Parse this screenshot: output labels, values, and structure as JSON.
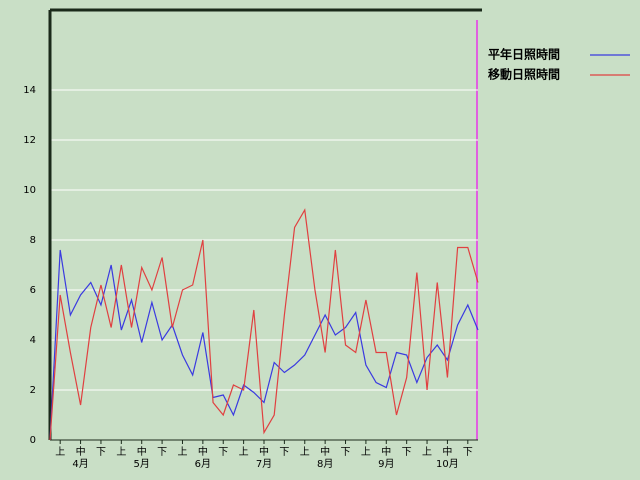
{
  "chart_data": {
    "type": "line",
    "series": [
      {
        "name": "平年日照時間",
        "color": "#3a3ae0",
        "values": [
          0,
          7.6,
          5.0,
          5.8,
          6.3,
          5.4,
          7.0,
          4.4,
          5.6,
          3.9,
          5.5,
          4.0,
          4.6,
          3.4,
          2.6,
          4.3,
          1.7,
          1.8,
          1.0,
          2.2,
          1.9,
          1.5,
          3.1,
          2.7,
          3.0,
          3.4,
          4.2,
          5.0,
          4.2,
          4.5,
          5.1,
          3.0,
          2.3,
          2.1,
          3.5,
          3.4,
          2.3,
          3.3,
          3.8,
          3.2,
          4.6,
          5.4,
          4.4
        ]
      },
      {
        "name": "移動日照時間",
        "color": "#e04040",
        "values": [
          0,
          5.8,
          3.5,
          1.4,
          4.5,
          6.2,
          4.5,
          7.0,
          4.5,
          6.9,
          6.0,
          7.3,
          4.5,
          6.0,
          6.2,
          8.0,
          1.5,
          1.0,
          2.2,
          2.0,
          5.2,
          0.3,
          1.0,
          5.0,
          8.5,
          9.2,
          6.0,
          3.5,
          7.6,
          3.8,
          3.5,
          5.6,
          3.5,
          3.5,
          1.0,
          2.5,
          6.7,
          2.0,
          6.3,
          2.5,
          7.7,
          7.7,
          6.3
        ]
      }
    ],
    "xtick_labels": [
      "上",
      "中",
      "下",
      "上",
      "中",
      "下",
      "上",
      "中",
      "下",
      "上",
      "中",
      "下",
      "上",
      "中",
      "下",
      "上",
      "中",
      "下",
      "上",
      "中",
      "下"
    ],
    "month_labels": [
      "4月",
      "5月",
      "6月",
      "7月",
      "8月",
      "9月",
      "10月"
    ],
    "ylim": [
      0,
      17.2
    ],
    "yticks": [
      0,
      2,
      4,
      6,
      8,
      10,
      12,
      14
    ],
    "grid": true
  }
}
